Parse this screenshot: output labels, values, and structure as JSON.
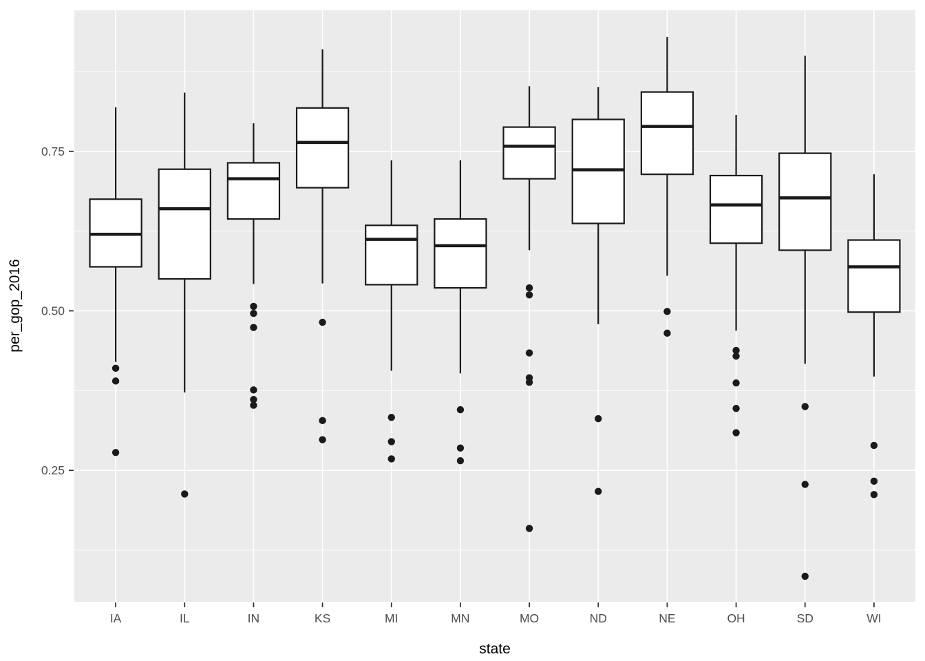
{
  "figure": {
    "background": "#FFFFFF",
    "panel_background": "#EBEBEB",
    "grid_color": "#FFFFFF",
    "box_stroke": "#1A1A1A",
    "box_fill": "#FFFFFF",
    "outlier_color": "#1A1A1A",
    "tick_mark_color": "#333333",
    "tick_label_color": "#4D4D4D",
    "axis_title_color": "#000000"
  },
  "chart_data": {
    "type": "boxplot",
    "title": "",
    "xlabel": "state",
    "ylabel": "per_gop_2016",
    "grid": true,
    "legend": false,
    "categories": [
      "IA",
      "IL",
      "IN",
      "KS",
      "MI",
      "MN",
      "MO",
      "ND",
      "NE",
      "OH",
      "SD",
      "WI"
    ],
    "y_ticks": [
      {
        "value": 0.25,
        "label": "0.25"
      },
      {
        "value": 0.5,
        "label": "0.50"
      },
      {
        "value": 0.75,
        "label": "0.75"
      }
    ],
    "y_minor_ticks": [
      0.125,
      0.375,
      0.625,
      0.875
    ],
    "ylim": [
      0.044,
      0.971
    ],
    "xlim_units": [
      0.4,
      12.6
    ],
    "box_width_units": 0.75,
    "series": [
      {
        "name": "IA",
        "whisker_high": 0.819,
        "q3": 0.675,
        "median": 0.62,
        "q1": 0.569,
        "whisker_low": 0.42,
        "outliers": [
          0.41,
          0.39,
          0.278
        ]
      },
      {
        "name": "IL",
        "whisker_high": 0.842,
        "q3": 0.722,
        "median": 0.66,
        "q1": 0.55,
        "whisker_low": 0.372,
        "outliers": [
          0.213
        ]
      },
      {
        "name": "IN",
        "whisker_high": 0.794,
        "q3": 0.732,
        "median": 0.707,
        "q1": 0.644,
        "whisker_low": 0.542,
        "outliers": [
          0.507,
          0.496,
          0.474,
          0.376,
          0.361,
          0.352
        ]
      },
      {
        "name": "KS",
        "whisker_high": 0.91,
        "q3": 0.818,
        "median": 0.764,
        "q1": 0.693,
        "whisker_low": 0.543,
        "outliers": [
          0.482,
          0.328,
          0.298
        ]
      },
      {
        "name": "MI",
        "whisker_high": 0.736,
        "q3": 0.634,
        "median": 0.612,
        "q1": 0.541,
        "whisker_low": 0.406,
        "outliers": [
          0.333,
          0.295,
          0.268
        ]
      },
      {
        "name": "MN",
        "whisker_high": 0.736,
        "q3": 0.644,
        "median": 0.602,
        "q1": 0.536,
        "whisker_low": 0.402,
        "outliers": [
          0.345,
          0.285,
          0.265
        ]
      },
      {
        "name": "MO",
        "whisker_high": 0.852,
        "q3": 0.788,
        "median": 0.758,
        "q1": 0.707,
        "whisker_low": 0.595,
        "outliers": [
          0.536,
          0.525,
          0.434,
          0.395,
          0.388,
          0.159
        ]
      },
      {
        "name": "ND",
        "whisker_high": 0.851,
        "q3": 0.8,
        "median": 0.721,
        "q1": 0.637,
        "whisker_low": 0.479,
        "outliers": [
          0.331,
          0.217
        ]
      },
      {
        "name": "NE",
        "whisker_high": 0.929,
        "q3": 0.843,
        "median": 0.789,
        "q1": 0.714,
        "whisker_low": 0.555,
        "outliers": [
          0.499,
          0.465
        ]
      },
      {
        "name": "OH",
        "whisker_high": 0.807,
        "q3": 0.712,
        "median": 0.666,
        "q1": 0.606,
        "whisker_low": 0.469,
        "outliers": [
          0.438,
          0.429,
          0.387,
          0.347,
          0.309
        ]
      },
      {
        "name": "SD",
        "whisker_high": 0.9,
        "q3": 0.747,
        "median": 0.677,
        "q1": 0.595,
        "whisker_low": 0.417,
        "outliers": [
          0.35,
          0.228,
          0.084
        ]
      },
      {
        "name": "WI",
        "whisker_high": 0.714,
        "q3": 0.611,
        "median": 0.569,
        "q1": 0.498,
        "whisker_low": 0.397,
        "outliers": [
          0.289,
          0.233,
          0.212
        ]
      }
    ]
  }
}
